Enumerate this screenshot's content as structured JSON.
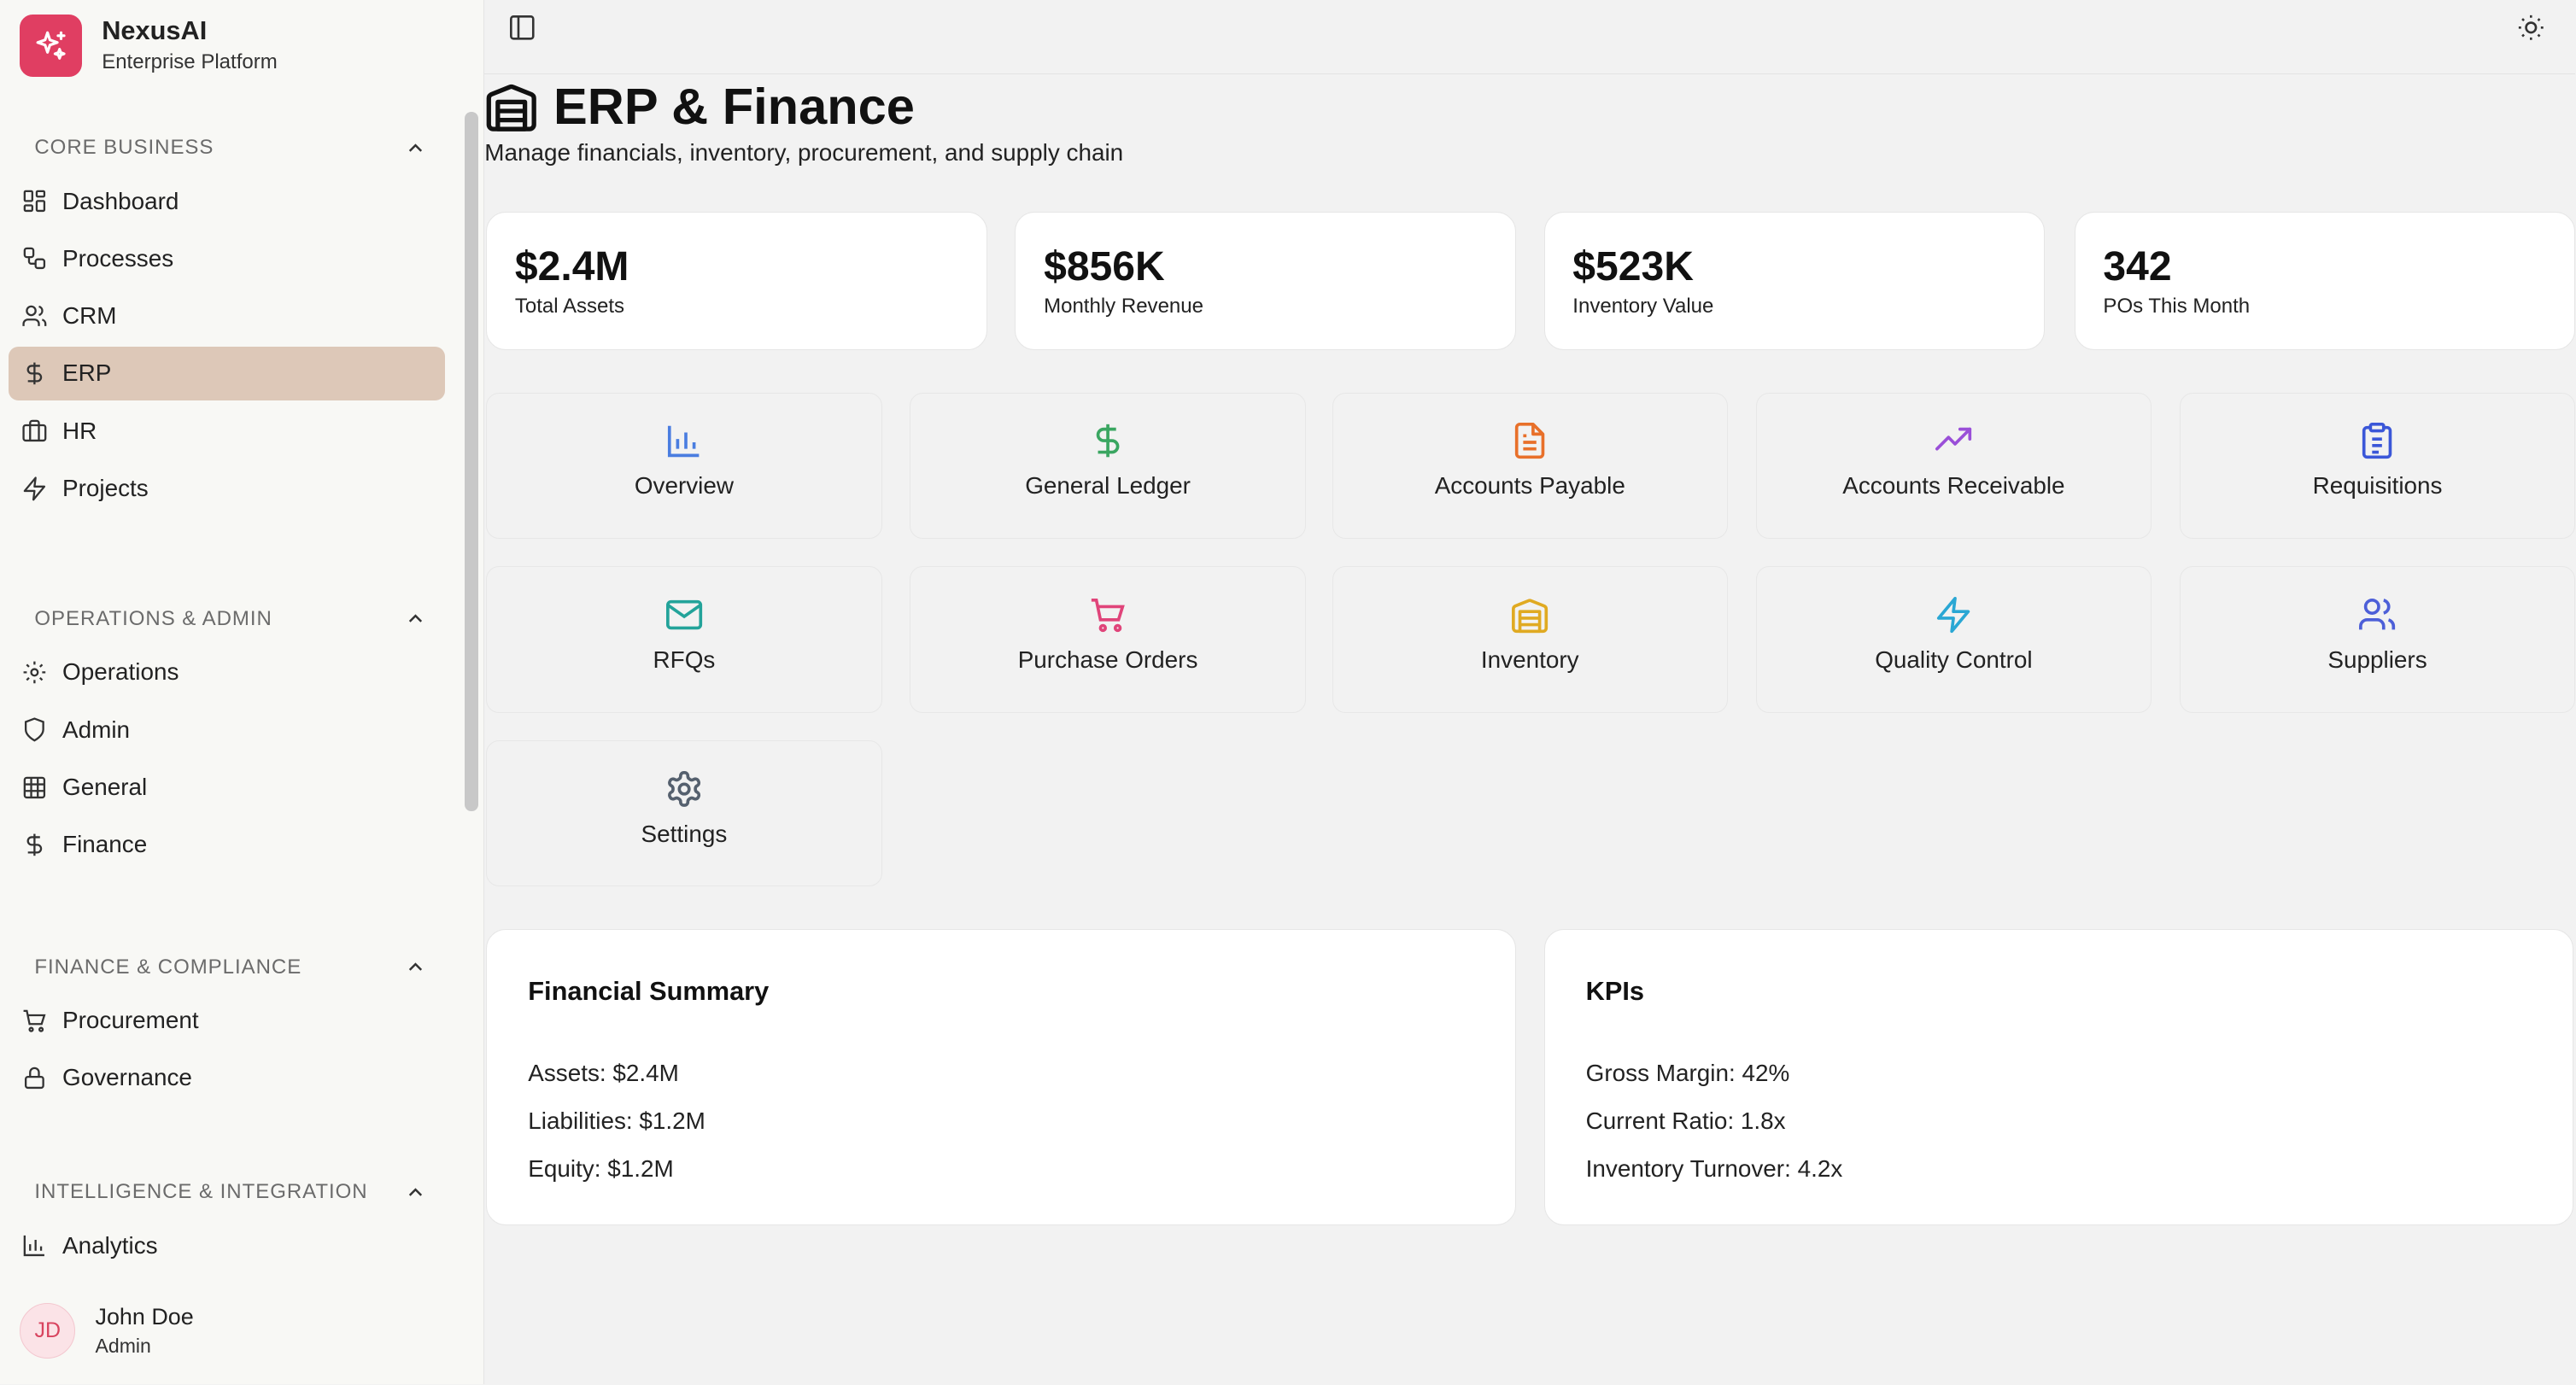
{
  "brand": {
    "name": "NexusAI",
    "subtitle": "Enterprise Platform"
  },
  "sidebar": {
    "sections": [
      {
        "title": "CORE BUSINESS",
        "items": [
          {
            "label": "Dashboard",
            "icon": "dashboard-icon"
          },
          {
            "label": "Processes",
            "icon": "workflow-icon"
          },
          {
            "label": "CRM",
            "icon": "users-icon"
          },
          {
            "label": "ERP",
            "icon": "dollar-icon",
            "active": true
          },
          {
            "label": "HR",
            "icon": "briefcase-icon"
          },
          {
            "label": "Projects",
            "icon": "zap-icon"
          }
        ]
      },
      {
        "title": "OPERATIONS & ADMIN",
        "items": [
          {
            "label": "Operations",
            "icon": "gear-icon"
          },
          {
            "label": "Admin",
            "icon": "shield-icon"
          },
          {
            "label": "General",
            "icon": "grid-icon"
          },
          {
            "label": "Finance",
            "icon": "dollar-icon"
          }
        ]
      },
      {
        "title": "FINANCE & COMPLIANCE",
        "items": [
          {
            "label": "Procurement",
            "icon": "cart-icon"
          },
          {
            "label": "Governance",
            "icon": "lock-icon"
          }
        ]
      },
      {
        "title": "INTELLIGENCE & INTEGRATION",
        "items": [
          {
            "label": "Analytics",
            "icon": "bar-chart-icon"
          }
        ]
      }
    ]
  },
  "user": {
    "initials": "JD",
    "name": "John Doe",
    "role": "Admin"
  },
  "page": {
    "title": "ERP & Finance",
    "subtitle": "Manage financials, inventory, procurement, and supply chain"
  },
  "stats": [
    {
      "value": "$2.4M",
      "label": "Total Assets"
    },
    {
      "value": "$856K",
      "label": "Monthly Revenue"
    },
    {
      "value": "$523K",
      "label": "Inventory Value"
    },
    {
      "value": "342",
      "label": "POs This Month"
    }
  ],
  "modules": [
    {
      "label": "Overview",
      "icon": "bar-chart-icon",
      "color": "#4a7de0"
    },
    {
      "label": "General Ledger",
      "icon": "dollar-icon",
      "color": "#3aa661"
    },
    {
      "label": "Accounts Payable",
      "icon": "file-icon",
      "color": "#e8702a"
    },
    {
      "label": "Accounts Receivable",
      "icon": "trending-up-icon",
      "color": "#9a4fd8"
    },
    {
      "label": "Requisitions",
      "icon": "clipboard-icon",
      "color": "#3b57d8"
    },
    {
      "label": "RFQs",
      "icon": "mail-icon",
      "color": "#23a39a"
    },
    {
      "label": "Purchase Orders",
      "icon": "cart-icon",
      "color": "#e0447a"
    },
    {
      "label": "Inventory",
      "icon": "warehouse-icon",
      "color": "#e0aa22"
    },
    {
      "label": "Quality Control",
      "icon": "zap-icon",
      "color": "#2aa7d4"
    },
    {
      "label": "Suppliers",
      "icon": "users-icon",
      "color": "#4d5fd8"
    },
    {
      "label": "Settings",
      "icon": "gear-icon",
      "color": "#55606e"
    }
  ],
  "financial_summary": {
    "title": "Financial Summary",
    "lines": [
      "Assets: $2.4M",
      "Liabilities: $1.2M",
      "Equity: $1.2M"
    ]
  },
  "kpis": {
    "title": "KPIs",
    "lines": [
      "Gross Margin: 42%",
      "Current Ratio: 1.8x",
      "Inventory Turnover: 4.2x"
    ]
  }
}
